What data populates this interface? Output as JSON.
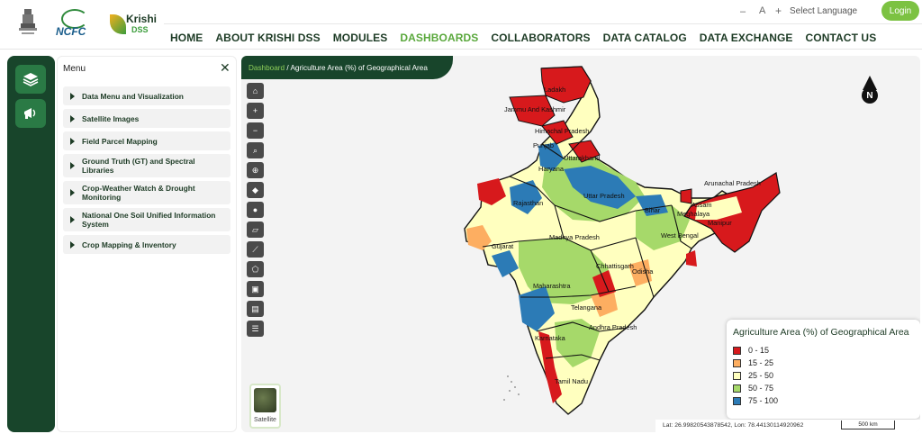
{
  "header": {
    "font_minus": "–",
    "font_normal": "A",
    "font_plus": "+",
    "language": "Select Language",
    "login": "Login",
    "ncfc": "NCFC",
    "krishi": "Krishi",
    "krishi_sub": "DSS"
  },
  "nav": [
    "HOME",
    "ABOUT KRISHI DSS",
    "MODULES",
    "DASHBOARDS",
    "COLLABORATORS",
    "DATA CATALOG",
    "DATA EXCHANGE",
    "CONTACT US"
  ],
  "nav_active_index": 3,
  "menu": {
    "title": "Menu",
    "close": "✕",
    "items": [
      "Data Menu and Visualization",
      "Satellite Images",
      "Field Parcel Mapping",
      "Ground Truth (GT) and Spectral Libraries",
      "Crop-Weather Watch & Drought Monitoring",
      "National One Soil Unified Information System",
      "Crop Mapping & Inventory"
    ]
  },
  "map": {
    "breadcrumb_home": "Dashboard",
    "breadcrumb_sep": " / ",
    "breadcrumb_current": "Agriculture Area (%) of Geographical Area",
    "north": "N",
    "basemap_label": "Satellite",
    "coordinates": "Lat: 26.99820543878542, Lon: 78.44130114920962",
    "scale": "500 km",
    "state_labels": [
      "Ladakh",
      "Jammu And Kashmir",
      "Himachal Pradesh",
      "Punjab",
      "Uttarakhand",
      "Haryana",
      "Uttar Pradesh",
      "Rajasthan",
      "Arunachal Pradesh",
      "Assam",
      "Meghalaya",
      "Manipur",
      "Bihar",
      "West Bengal",
      "Gujarat",
      "Madhya Pradesh",
      "Chhattisgarh",
      "Odisha",
      "Maharashtra",
      "Telangana",
      "Andhra Pradesh",
      "Karnataka",
      "Tamil Nadu"
    ]
  },
  "legend": {
    "title": "Agriculture Area (%) of Geographical Area",
    "items": [
      {
        "label": "0 - 15",
        "color": "#d7191c"
      },
      {
        "label": "15 - 25",
        "color": "#fdae61"
      },
      {
        "label": "25 - 50",
        "color": "#ffffbf"
      },
      {
        "label": "50 - 75",
        "color": "#a6d96a"
      },
      {
        "label": "75 - 100",
        "color": "#2c7bb6"
      }
    ]
  }
}
